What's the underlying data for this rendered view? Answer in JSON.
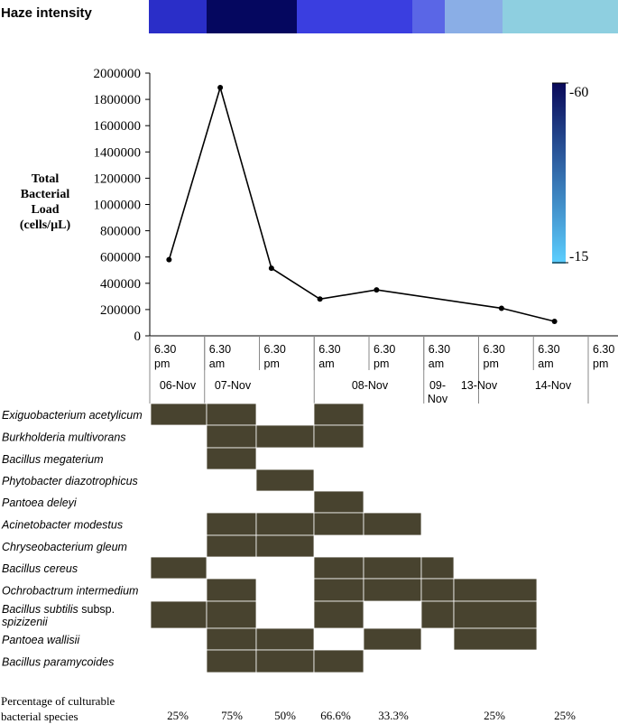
{
  "haze": {
    "title": "Haze intensity",
    "segments": [
      {
        "color": "#2a2ec8"
      },
      {
        "color": "#05075f"
      },
      {
        "color": "#3a3ee0"
      },
      {
        "color": "#5a66e6"
      },
      {
        "color": "#8aaee6"
      },
      {
        "color": "#8ecfe0"
      }
    ]
  },
  "legend": {
    "top_label": "-60",
    "bottom_label": "-15",
    "top_color": "#0a0a5a",
    "bottom_color": "#5ccfff"
  },
  "y_axis_label": [
    "Total",
    "Bacterial",
    "Load",
    "(cells/µL)"
  ],
  "chart_data": {
    "type": "line",
    "ylabel": "Total Bacterial Load (cells/µL)",
    "ylim": [
      0,
      2000000
    ],
    "yticks": [
      "0",
      "200000",
      "400000",
      "600000",
      "800000",
      "1000000",
      "1200000",
      "1400000",
      "1600000",
      "1800000",
      "2000000"
    ],
    "x_time_labels": [
      {
        "line1": "6.30",
        "line2": "pm"
      },
      {
        "line1": "6.30",
        "line2": "am"
      },
      {
        "line1": "6.30",
        "line2": "pm"
      },
      {
        "line1": "6.30",
        "line2": "am"
      },
      {
        "line1": "6.30",
        "line2": "pm"
      },
      {
        "line1": "6.30",
        "line2": "am"
      },
      {
        "line1": "6.30",
        "line2": "pm"
      },
      {
        "line1": "6.30",
        "line2": "am"
      },
      {
        "line1": "6.30",
        "line2": "pm"
      }
    ],
    "x_date_labels": [
      {
        "line1": "06-Nov",
        "line2": ""
      },
      {
        "line1": "07-Nov",
        "line2": ""
      },
      {
        "line1": "08-Nov",
        "line2": ""
      },
      {
        "line1": "09-",
        "line2": "Nov"
      },
      {
        "line1": "13-Nov",
        "line2": ""
      },
      {
        "line1": "14-Nov",
        "line2": ""
      }
    ],
    "points": [
      {
        "slot": 1,
        "y": 580000
      },
      {
        "slot": 2,
        "y": 1890000
      },
      {
        "slot": 3,
        "y": 515000
      },
      {
        "slot": 4,
        "y": 280000
      },
      {
        "slot": 5,
        "y": 350000
      },
      {
        "slot": 7,
        "y": 210000
      },
      {
        "slot": 8,
        "y": 110000
      }
    ]
  },
  "presence": {
    "species": [
      {
        "name": "Exiguobacterium acetylicum",
        "suffix": ""
      },
      {
        "name": "Burkholderia multivorans",
        "suffix": ""
      },
      {
        "name": "Bacillus megaterium",
        "suffix": ""
      },
      {
        "name": "Phytobacter diazotrophicus",
        "suffix": ""
      },
      {
        "name": "Pantoea deleyi",
        "suffix": ""
      },
      {
        "name": "Acinetobacter modestus",
        "suffix": ""
      },
      {
        "name": "Chryseobacterium gleum",
        "suffix": ""
      },
      {
        "name": "Bacillus cereus",
        "suffix": ""
      },
      {
        "name": "Ochrobactrum intermedium",
        "suffix": ""
      },
      {
        "name": "Bacillus subtilis",
        "suffix": " subsp.",
        "line2": "spizizenii"
      },
      {
        "name": "Pantoea wallisii",
        "suffix": ""
      },
      {
        "name": "Bacillus paramycoides",
        "suffix": ""
      }
    ],
    "matrix": [
      [
        1,
        1,
        0,
        1,
        0,
        0,
        0,
        0
      ],
      [
        0,
        1,
        1,
        1,
        0,
        0,
        0,
        0
      ],
      [
        0,
        1,
        0,
        0,
        0,
        0,
        0,
        0
      ],
      [
        0,
        0,
        1,
        0,
        0,
        0,
        0,
        0
      ],
      [
        0,
        0,
        0,
        1,
        0,
        0,
        0,
        0
      ],
      [
        0,
        1,
        1,
        1,
        1,
        0,
        0,
        0
      ],
      [
        0,
        1,
        1,
        0,
        0,
        0,
        0,
        0
      ],
      [
        1,
        0,
        0,
        1,
        1,
        1,
        0,
        0
      ],
      [
        0,
        1,
        0,
        1,
        1,
        1,
        1,
        0
      ],
      [
        1,
        1,
        0,
        1,
        0,
        1,
        1,
        0
      ],
      [
        0,
        1,
        1,
        0,
        1,
        0,
        1,
        0
      ],
      [
        0,
        1,
        1,
        1,
        0,
        0,
        0,
        0
      ]
    ],
    "cell_color": "#48432f"
  },
  "percentages": {
    "title_line1": "Percentage of culturable",
    "title_line2": "bacterial species",
    "values": [
      "25%",
      "75%",
      "50%",
      "66.6%",
      "33.3%",
      "25%",
      "25%"
    ]
  }
}
